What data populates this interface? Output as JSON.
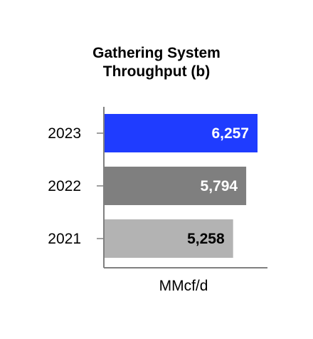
{
  "chart_data": {
    "type": "bar",
    "orientation": "horizontal",
    "title_lines": [
      "Gathering System",
      "Throughput (b)"
    ],
    "xlabel": "MMcf/d",
    "ylabel": "",
    "categories": [
      "2023",
      "2022",
      "2021"
    ],
    "values": [
      6257,
      5794,
      5258
    ],
    "value_labels": [
      "6,257",
      "5,794",
      "5,258"
    ],
    "bar_colors": [
      "#1f3cff",
      "#7f7f7f",
      "#b3b3b3"
    ],
    "label_colors": [
      "#ffffff",
      "#ffffff",
      "#000000"
    ],
    "xlim": [
      0,
      7000
    ],
    "grid": false,
    "legend": "none"
  }
}
